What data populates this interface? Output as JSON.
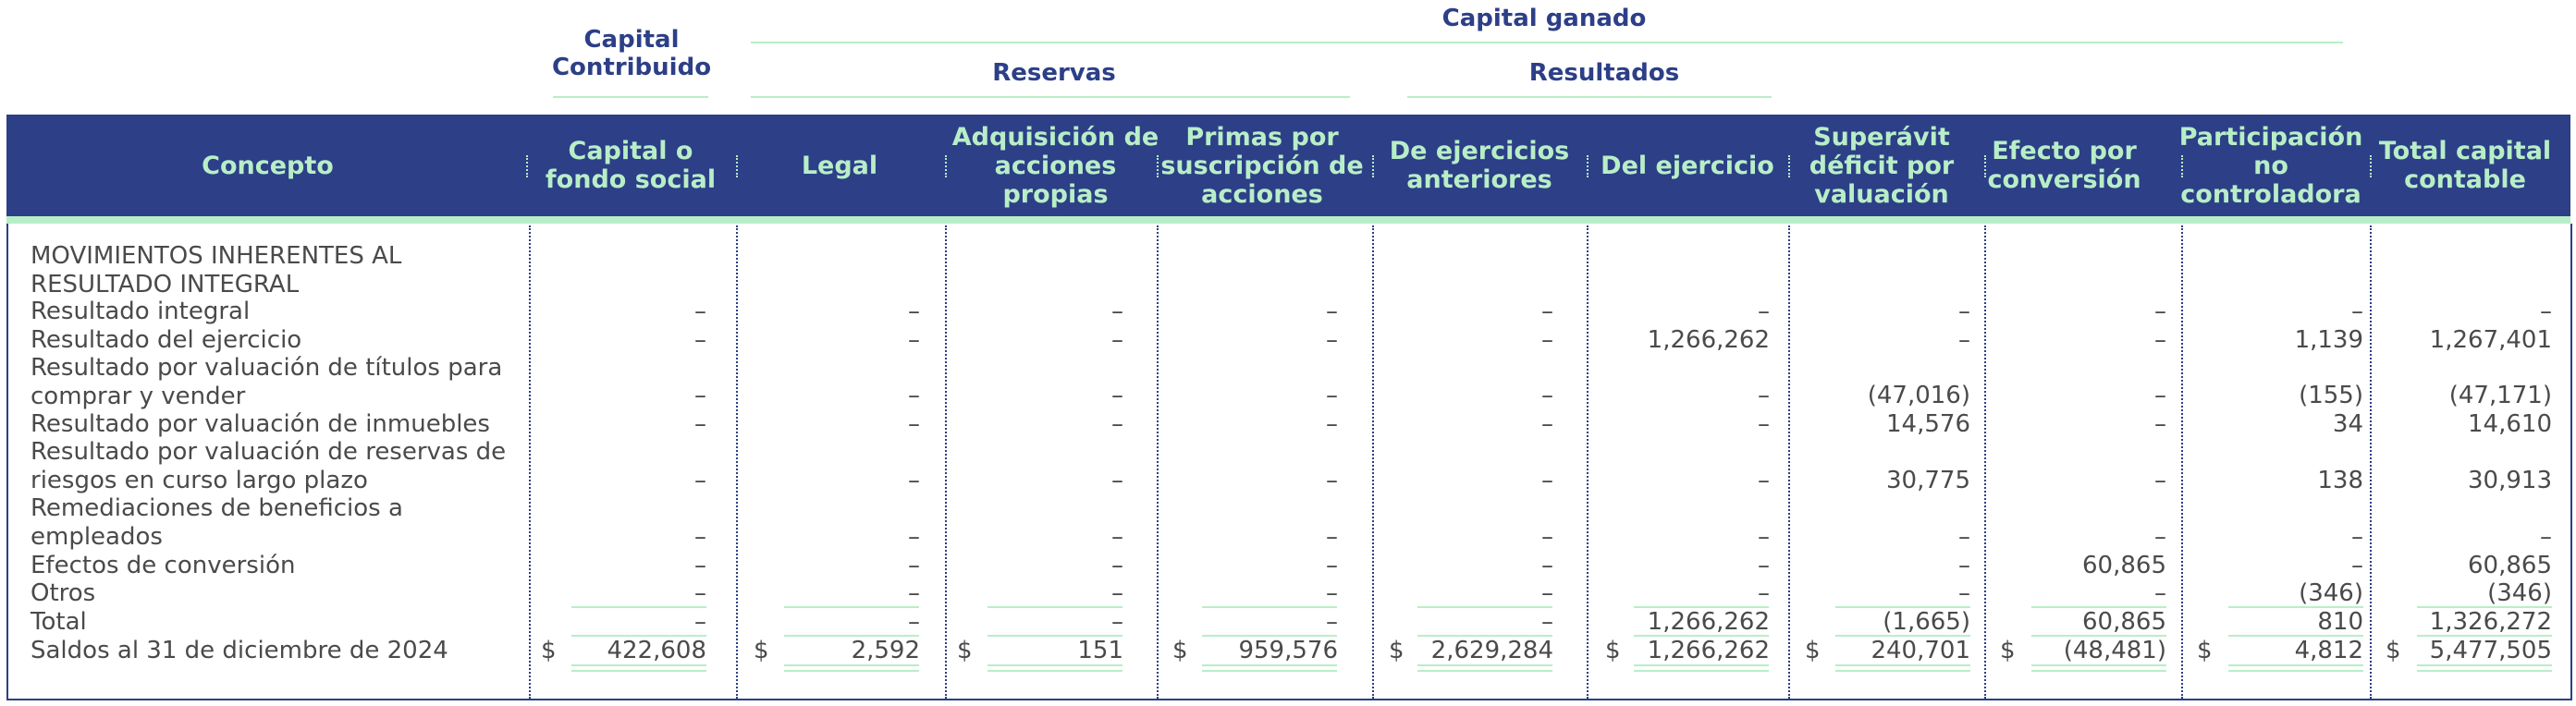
{
  "top_headers": {
    "capital_contribuido": "Capital\nContribuido",
    "capital_ganado": "Capital ganado",
    "reservas": "Reservas",
    "resultados": "Resultados"
  },
  "columns": [
    "Concepto",
    "Capital o fondo social",
    "Legal",
    "Adquisición de acciones propias",
    "Primas por suscripción de acciones",
    "De ejercicios anteriores",
    "Del ejercicio",
    "Superávit déficit por valuación",
    "Efecto por conversión",
    "Participación no controladora",
    "Total capital contable"
  ],
  "rows": [
    {
      "label": "MOVIMIENTOS INHERENTES AL RESULTADO INTEGRAL",
      "values": [
        "",
        "",
        "",
        "",
        "",
        "",
        "",
        "",
        "",
        ""
      ]
    },
    {
      "label": "Resultado integral",
      "values": [
        "–",
        "–",
        "–",
        "–",
        "–",
        "–",
        "–",
        "–",
        "–",
        "–"
      ]
    },
    {
      "label": "Resultado del ejercicio",
      "values": [
        "–",
        "–",
        "–",
        "–",
        "–",
        "1,266,262",
        "–",
        "–",
        "1,139",
        "1,267,401"
      ]
    },
    {
      "label": "Resultado por valuación de títulos para comprar y vender",
      "values": [
        "–",
        "–",
        "–",
        "–",
        "–",
        "–",
        "(47,016)",
        "–",
        "(155)",
        "(47,171)"
      ]
    },
    {
      "label": "Resultado por valuación de inmuebles",
      "values": [
        "–",
        "–",
        "–",
        "–",
        "–",
        "–",
        "14,576",
        "–",
        "34",
        "14,610"
      ]
    },
    {
      "label": "Resultado por valuación de reservas de riesgos en curso largo plazo",
      "values": [
        "–",
        "–",
        "–",
        "–",
        "–",
        "–",
        "30,775",
        "–",
        "138",
        "30,913"
      ]
    },
    {
      "label": "Remediaciones de beneficios a empleados",
      "values": [
        "–",
        "–",
        "–",
        "–",
        "–",
        "–",
        "–",
        "–",
        "–",
        "–"
      ]
    },
    {
      "label": "Efectos de conversión",
      "values": [
        "–",
        "–",
        "–",
        "–",
        "–",
        "–",
        "–",
        "60,865",
        "–",
        "60,865"
      ]
    },
    {
      "label": "Otros",
      "values": [
        "–",
        "–",
        "–",
        "–",
        "–",
        "–",
        "–",
        "–",
        "(346)",
        "(346)"
      ]
    },
    {
      "label": "Total",
      "values": [
        "–",
        "–",
        "–",
        "–",
        "–",
        "1,266,262",
        "(1,665)",
        "60,865",
        "810",
        "1,326,272"
      ]
    },
    {
      "label": "Saldos al 31 de diciembre de 2024",
      "values": [
        "422,608",
        "2,592",
        "151",
        "959,576",
        "2,629,284",
        "1,266,262",
        "240,701",
        "(48,481)",
        "4,812",
        "5,477,505"
      ]
    }
  ],
  "currency_symbol": "$",
  "colors": {
    "navy": "#2c3f87",
    "mint": "#b8eec7",
    "text": "#4a4a4a"
  }
}
